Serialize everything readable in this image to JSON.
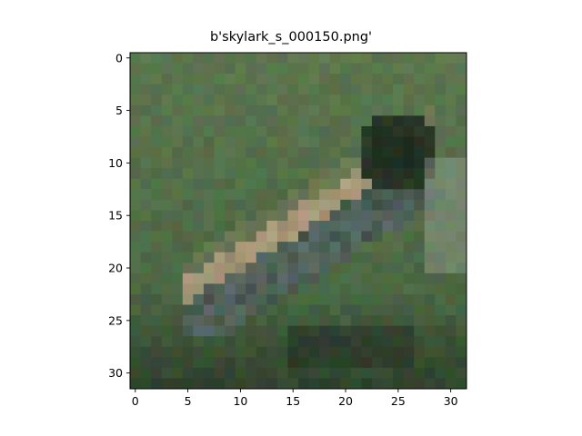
{
  "figure": {
    "title": "b'skylark_s_000150.png'"
  },
  "image": {
    "description_hidden": false,
    "grid_size": 32,
    "palette_notes": "blurred 32x32 low-res photo: grassy green/olive background, bird with tan/beige streaked back and dark head, grey-blue underside"
  },
  "axes": {
    "x_ticks": [
      "0",
      "5",
      "10",
      "15",
      "20",
      "25",
      "30"
    ],
    "y_ticks": [
      "0",
      "5",
      "10",
      "15",
      "20",
      "25",
      "30"
    ]
  },
  "colors": {
    "frame": "#000000",
    "background": "#ffffff"
  }
}
